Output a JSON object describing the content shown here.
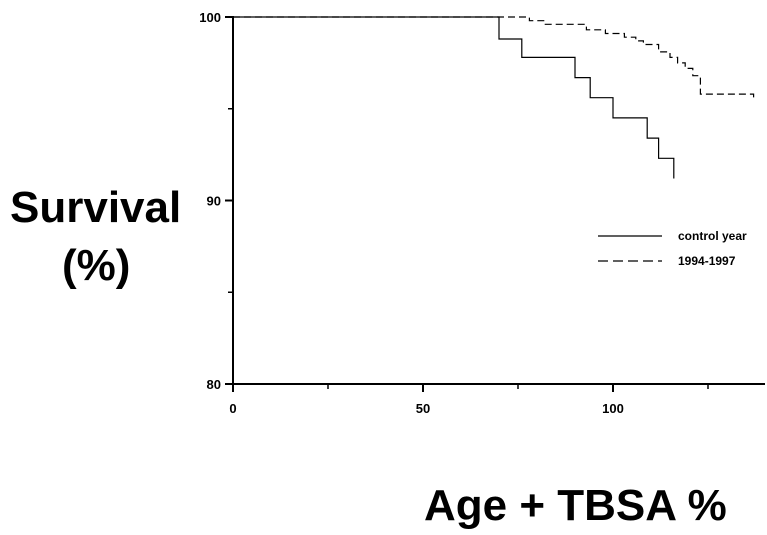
{
  "chart_data": {
    "type": "line",
    "title": "",
    "ylabel_line1": "Survival",
    "ylabel_line2": "(%)",
    "xlabel": "Age + TBSA %",
    "xlim": [
      0,
      140
    ],
    "ylim": [
      80,
      100
    ],
    "x_ticks": [
      0,
      50,
      100
    ],
    "y_ticks": [
      80,
      90,
      100
    ],
    "x_minor_ticks": [
      25,
      75,
      125
    ],
    "y_minor_ticks": [
      85,
      95
    ],
    "grid": false,
    "legend_position": "right",
    "series": [
      {
        "name": "control year",
        "style": "solid",
        "x": [
          0,
          70,
          70,
          76,
          76,
          90,
          90,
          94,
          94,
          100,
          100,
          109,
          109,
          112,
          112,
          116,
          116
        ],
        "y": [
          100,
          100,
          98.8,
          98.8,
          97.8,
          97.8,
          96.7,
          96.7,
          95.6,
          95.6,
          94.5,
          94.5,
          93.4,
          93.4,
          92.3,
          92.3,
          91.2
        ]
      },
      {
        "name": "1994-1997",
        "style": "dashed",
        "x": [
          0,
          78,
          78,
          82,
          82,
          93,
          93,
          98,
          98,
          103,
          103,
          106,
          106,
          108,
          108,
          112,
          112,
          115,
          115,
          117,
          117,
          119,
          119,
          121,
          121,
          123,
          123,
          137,
          137
        ],
        "y": [
          100,
          100,
          99.8,
          99.8,
          99.6,
          99.6,
          99.3,
          99.3,
          99.1,
          99.1,
          98.9,
          98.9,
          98.7,
          98.7,
          98.5,
          98.5,
          98.1,
          98.1,
          97.8,
          97.8,
          97.5,
          97.5,
          97.2,
          97.2,
          96.8,
          96.8,
          95.8,
          95.8,
          95.5
        ]
      }
    ]
  }
}
